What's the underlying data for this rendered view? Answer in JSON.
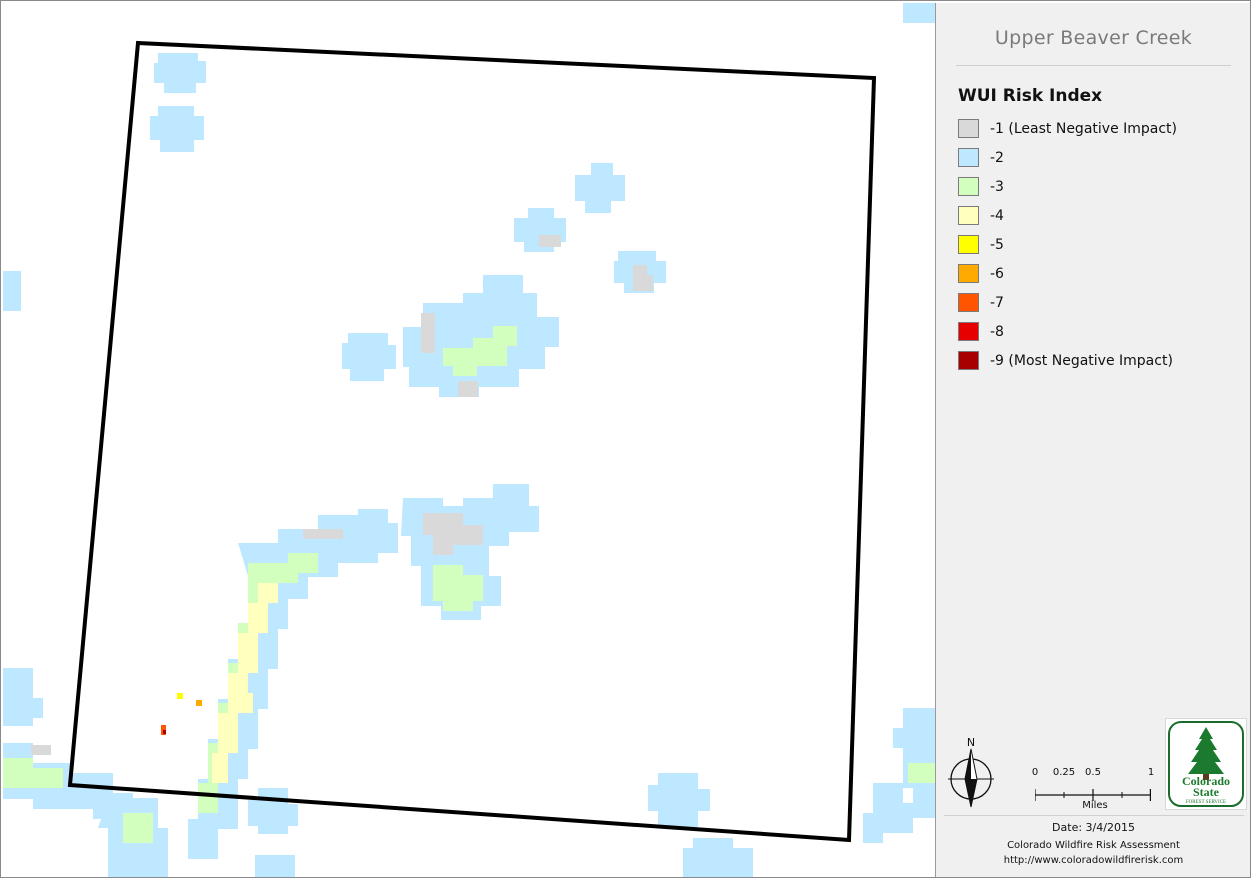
{
  "map": {
    "title": "Upper Beaver Creek",
    "legend": {
      "title": "WUI Risk Index",
      "items": [
        {
          "label": "-1 (Least Negative Impact)",
          "color": "#d9d9d9"
        },
        {
          "label": "-2",
          "color": "#bee8ff"
        },
        {
          "label": "-3",
          "color": "#d3ffbe"
        },
        {
          "label": "-4",
          "color": "#ffffbe"
        },
        {
          "label": "-5",
          "color": "#ffff00"
        },
        {
          "label": "-6",
          "color": "#ffaa00"
        },
        {
          "label": "-7",
          "color": "#ff5500"
        },
        {
          "label": "-8",
          "color": "#e60000"
        },
        {
          "label": "-9 (Most Negative Impact)",
          "color": "#a80000"
        }
      ]
    },
    "north_arrow": {
      "label": "N"
    },
    "scale_bar": {
      "ticks": [
        "0",
        "0.25",
        "0.5",
        "1"
      ],
      "units": "Miles"
    },
    "logo": {
      "line1": "Colorado",
      "line2": "State",
      "line3": "FOREST SERVICE"
    },
    "footer": {
      "date": "Date: 3/4/2015",
      "org": "Colorado Wildfire Risk Assessment",
      "url": "http://www.coloradowildfirerisk.com"
    }
  }
}
